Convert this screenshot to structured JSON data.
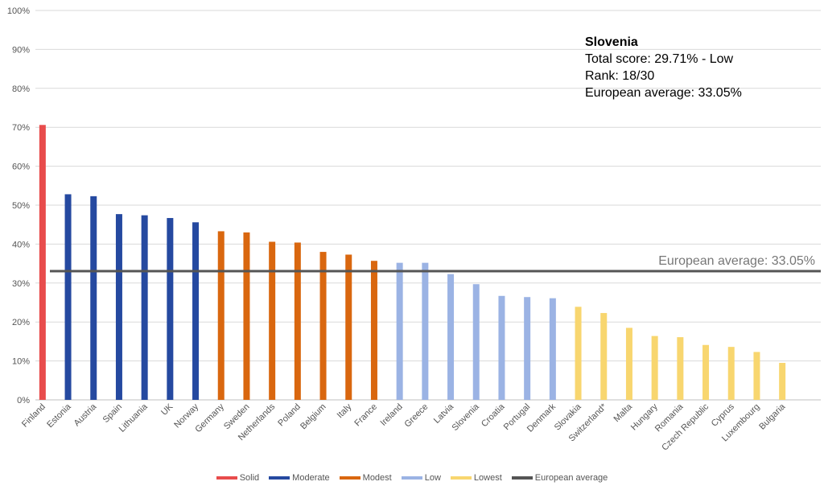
{
  "chart_data": {
    "type": "bar",
    "ylim": [
      0,
      100
    ],
    "yticks": [
      "0%",
      "10%",
      "20%",
      "30%",
      "40%",
      "50%",
      "60%",
      "70%",
      "80%",
      "90%",
      "100%"
    ],
    "grid": true,
    "categories": [
      "Finland",
      "Estonia",
      "Austria",
      "Spain",
      "Lithuania",
      "UK",
      "Norway",
      "Germany",
      "Sweden",
      "Netherlands",
      "Poland",
      "Belgium",
      "Italy",
      "France",
      "Ireland",
      "Greece",
      "Latvia",
      "Slovenia",
      "Croatia",
      "Portugal",
      "Denmark",
      "Slovakia",
      "Switzerland*",
      "Malta",
      "Hungary",
      "Romania",
      "Czech Republic",
      "Cyprus",
      "Luxembourg",
      "Bulgaria"
    ],
    "values": [
      70.6,
      52.8,
      52.3,
      47.7,
      47.4,
      46.7,
      45.6,
      43.3,
      43.0,
      40.6,
      40.4,
      38.0,
      37.3,
      35.7,
      35.2,
      35.2,
      32.3,
      29.71,
      26.7,
      26.4,
      26.1,
      23.9,
      22.3,
      18.5,
      16.4,
      16.1,
      14.1,
      13.6,
      12.3,
      9.5
    ],
    "groups": [
      "Solid",
      "Moderate",
      "Moderate",
      "Moderate",
      "Moderate",
      "Moderate",
      "Moderate",
      "Modest",
      "Modest",
      "Modest",
      "Modest",
      "Modest",
      "Modest",
      "Modest",
      "Low",
      "Low",
      "Low",
      "Low",
      "Low",
      "Low",
      "Low",
      "Lowest",
      "Lowest",
      "Lowest",
      "Lowest",
      "Lowest",
      "Lowest",
      "Lowest",
      "Lowest",
      "Lowest"
    ],
    "group_colors": {
      "Solid": "#e84c4c",
      "Moderate": "#2549a0",
      "Modest": "#d9670f",
      "Low": "#9bb3e4",
      "Lowest": "#f8d66f"
    },
    "reference_line": {
      "name": "European average",
      "value": 33.05,
      "color": "#555555",
      "label": "European average: 33.05%"
    },
    "legend": [
      "Solid",
      "Moderate",
      "Modest",
      "Low",
      "Lowest",
      "European average"
    ],
    "legend_position": "bottom"
  },
  "info_box": {
    "title": "Slovenia",
    "lines": [
      "Total score: 29.71% - Low",
      "Rank: 18/30",
      "European average: 33.05%"
    ]
  }
}
